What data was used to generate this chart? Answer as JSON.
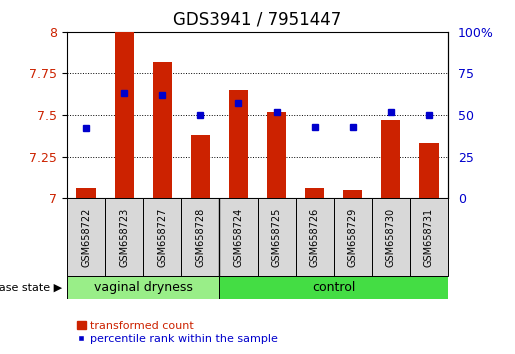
{
  "title": "GDS3941 / 7951447",
  "samples": [
    "GSM658722",
    "GSM658723",
    "GSM658727",
    "GSM658728",
    "GSM658724",
    "GSM658725",
    "GSM658726",
    "GSM658729",
    "GSM658730",
    "GSM658731"
  ],
  "transformed_count": [
    7.06,
    8.0,
    7.82,
    7.38,
    7.65,
    7.52,
    7.06,
    7.05,
    7.47,
    7.33
  ],
  "percentile_rank": [
    42,
    63,
    62,
    50,
    57,
    52,
    43,
    43,
    52,
    50
  ],
  "ylim_left": [
    7,
    8
  ],
  "ylim_right": [
    0,
    100
  ],
  "yticks_left": [
    7,
    7.25,
    7.5,
    7.75,
    8
  ],
  "yticks_right": [
    0,
    25,
    50,
    75,
    100
  ],
  "bar_color": "#cc2200",
  "dot_color": "#0000cc",
  "bar_width": 0.5,
  "group1_label": "vaginal dryness",
  "group2_label": "control",
  "group1_count": 4,
  "group2_count": 6,
  "group1_color": "#99ee88",
  "group2_color": "#44dd44",
  "disease_state_label": "disease state",
  "legend_bar_label": "transformed count",
  "legend_dot_label": "percentile rank within the sample",
  "title_fontsize": 12,
  "tick_fontsize": 9,
  "sample_label_fontsize": 7
}
